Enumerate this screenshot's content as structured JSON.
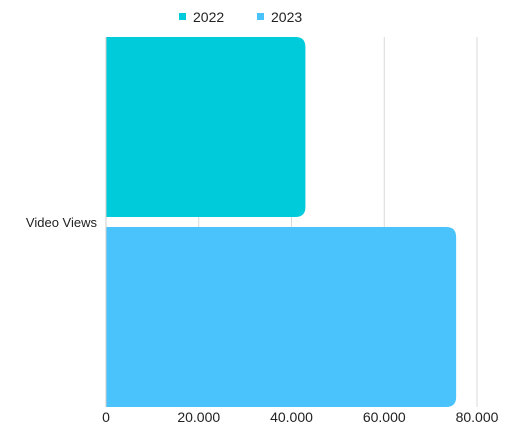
{
  "chart_data": {
    "type": "bar",
    "orientation": "horizontal",
    "categories": [
      "Video Views"
    ],
    "series": [
      {
        "name": "2022",
        "values": [
          43000
        ],
        "color": "#00CBDB"
      },
      {
        "name": "2023",
        "values": [
          75500
        ],
        "color": "#4AC3FD"
      }
    ],
    "xlim": [
      0,
      80000
    ],
    "xticks": [
      0,
      20000,
      40000,
      60000,
      80000
    ],
    "xtick_labels": [
      "0",
      "20.000",
      "40.000",
      "60.000",
      "80.000"
    ],
    "grid": "vertical",
    "legend": "top-center"
  }
}
